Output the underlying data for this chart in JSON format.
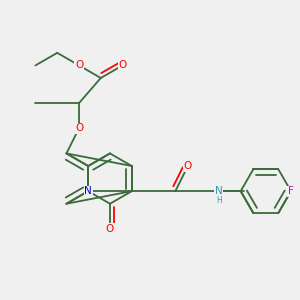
{
  "bg_color": "#f0f0f0",
  "bond_color": "#3a6b3a",
  "atom_colors": {
    "O": "#ff0000",
    "N": "#0000cc",
    "F": "#cc00cc",
    "C": "#3a6b3a",
    "NH": "#3399aa"
  },
  "figsize": [
    3.0,
    3.0
  ],
  "dpi": 100
}
